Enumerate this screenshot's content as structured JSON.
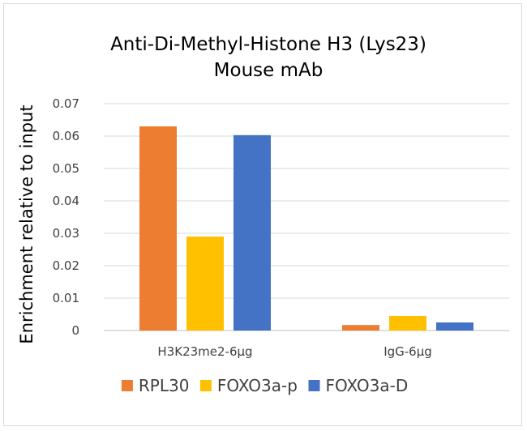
{
  "chart_data": {
    "type": "bar",
    "title_lines": [
      "Anti-Di-Methyl-Histone H3 (Lys23)",
      "Mouse mAb"
    ],
    "xlabel": "",
    "ylabel": "Enrichment relative to input",
    "categories": [
      "H3K23me2-6µg",
      "IgG-6µg"
    ],
    "ylim": [
      0,
      0.07
    ],
    "yticks": [
      0,
      0.01,
      0.02,
      0.03,
      0.04,
      0.05,
      0.06,
      0.07
    ],
    "ytick_labels": [
      "0",
      "0.01",
      "0.02",
      "0.03",
      "0.04",
      "0.05",
      "0.06",
      "0.07"
    ],
    "grid": true,
    "legend_position": "bottom",
    "series": [
      {
        "name": "RPL30",
        "color": "#ED7D31",
        "values": [
          0.063,
          0.0017
        ]
      },
      {
        "name": "FOXO3a-p",
        "color": "#FFC000",
        "values": [
          0.029,
          0.0045
        ]
      },
      {
        "name": "FOXO3a-D",
        "color": "#4472C4",
        "values": [
          0.0603,
          0.0025
        ]
      }
    ]
  }
}
